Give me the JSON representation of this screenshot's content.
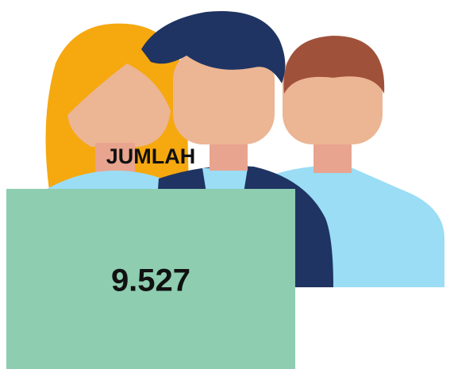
{
  "label": "JUMLAH",
  "value": "9.527"
}
